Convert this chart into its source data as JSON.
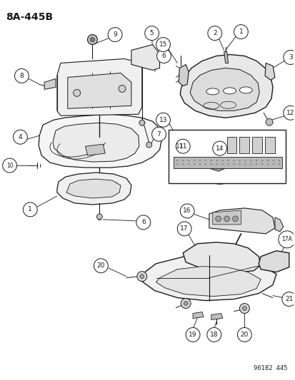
{
  "title": "8A-445B",
  "footer": "96182  445",
  "bg": "#ffffff",
  "lc": "#1a1a1a",
  "fig_w": 4.14,
  "fig_h": 5.33,
  "dpi": 100
}
